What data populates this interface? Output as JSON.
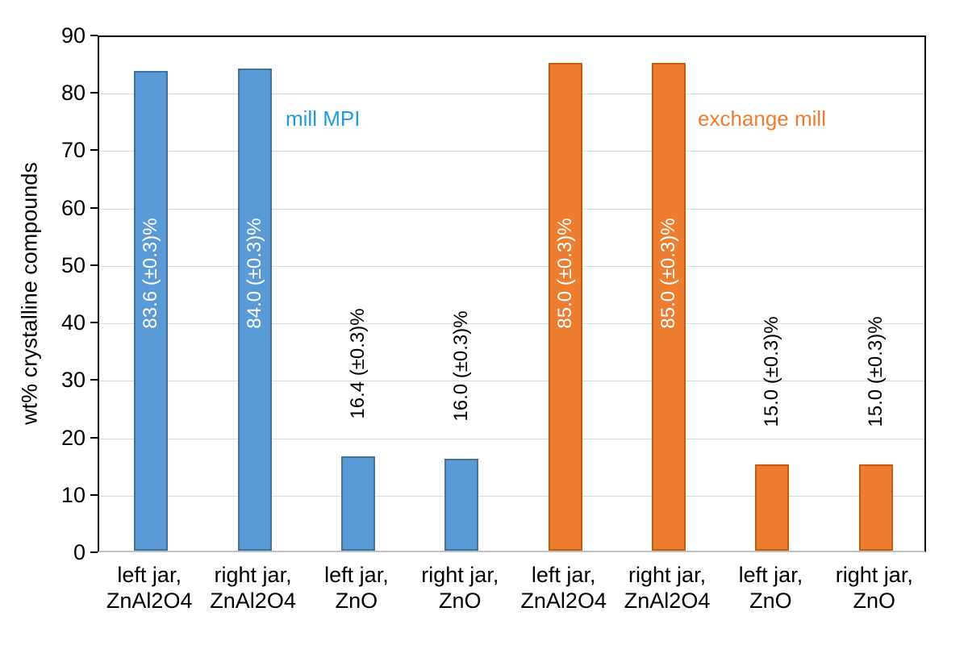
{
  "chart_data": {
    "type": "bar",
    "title": "",
    "xlabel": "",
    "ylabel": "wt% crystalline compounds",
    "ylim": [
      0,
      90
    ],
    "yticks": [
      0,
      10,
      20,
      30,
      40,
      50,
      60,
      70,
      80,
      90
    ],
    "grid": "horizontal-light-gray",
    "legend_position": "none",
    "groups": [
      {
        "name": "mill MPI",
        "fill": "#5B9BD5",
        "border": "#41719C",
        "annotation_color": "#1E9CD7"
      },
      {
        "name": "exchange mill",
        "fill": "#ED7D31",
        "border": "#C55A11",
        "annotation_color": "#ED7D31"
      }
    ],
    "bars": [
      {
        "category_lines": [
          "left jar,",
          "ZnAl2O4"
        ],
        "value": 83.6,
        "label": "83.6 (±0.3)%",
        "group": 0,
        "label_placement": "inside"
      },
      {
        "category_lines": [
          "right jar,",
          "ZnAl2O4"
        ],
        "value": 84.0,
        "label": "84.0 (±0.3)%",
        "group": 0,
        "label_placement": "inside"
      },
      {
        "category_lines": [
          "left jar,",
          "ZnO"
        ],
        "value": 16.4,
        "label": "16.4 (±0.3)%",
        "group": 0,
        "label_placement": "outside"
      },
      {
        "category_lines": [
          "right jar,",
          "ZnO"
        ],
        "value": 16.0,
        "label": "16.0 (±0.3)%",
        "group": 0,
        "label_placement": "outside"
      },
      {
        "category_lines": [
          "left jar,",
          "ZnAl2O4"
        ],
        "value": 85.0,
        "label": "85.0 (±0.3)%",
        "group": 1,
        "label_placement": "inside"
      },
      {
        "category_lines": [
          "right jar,",
          "ZnAl2O4"
        ],
        "value": 85.0,
        "label": "85.0 (±0.3)%",
        "group": 1,
        "label_placement": "inside"
      },
      {
        "category_lines": [
          "left jar,",
          "ZnO"
        ],
        "value": 15.0,
        "label": "15.0 (±0.3)%",
        "group": 1,
        "label_placement": "outside"
      },
      {
        "category_lines": [
          "right jar,",
          "ZnO"
        ],
        "value": 15.0,
        "label": "15.0 (±0.3)%",
        "group": 1,
        "label_placement": "outside"
      }
    ],
    "annotations": [
      {
        "text": "mill MPI",
        "group": 0
      },
      {
        "text": "exchange mill",
        "group": 1
      }
    ],
    "colors": {
      "gridline": "#D9D9D9",
      "axis_line": "#000000",
      "bottom_axis_line": "#BFBFBF",
      "background": "#FFFFFF",
      "inside_label_text": "#FFFFFF",
      "outside_label_text": "#000000"
    }
  }
}
